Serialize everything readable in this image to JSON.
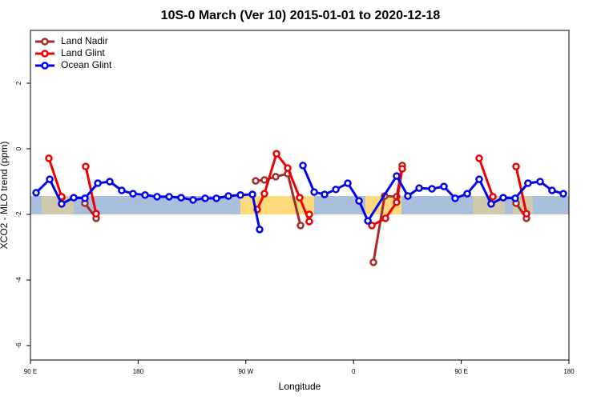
{
  "chart_data": {
    "type": "line",
    "title": "10S-0 March (Ver 10)   2015-01-01 to 2020-12-18",
    "xlabel": "Longitude",
    "ylabel": "XCO2 - MLO trend (ppm)",
    "xlim": [
      90,
      540
    ],
    "ylim": [
      -6.44,
      3.61
    ],
    "xticks": [
      {
        "value": 90,
        "label": "90 E"
      },
      180,
      {
        "value": 270,
        "label": "90 W"
      },
      {
        "value": 360,
        "label": "0"
      },
      {
        "value": 450,
        "label": "90 E"
      },
      {
        "value": 540,
        "label": "180"
      }
    ],
    "yticks": [
      -6,
      -4,
      -2,
      0,
      2
    ],
    "legend": "top-left",
    "series": [
      {
        "name": "Land Nadir",
        "color": "#a52a2a",
        "x": [
          116.1,
          null,
          135.5,
          144.9,
          null,
          278.2,
          285.5,
          294.9,
          305.0,
          315.7,
          null,
          376.6,
          386.0,
          396.0,
          400.7,
          null,
          495.8,
          504.5
        ],
        "values": [
          -1.49,
          null,
          -1.66,
          -2.12,
          null,
          -0.98,
          -0.95,
          -0.85,
          -0.76,
          -2.34,
          null,
          -3.46,
          -1.44,
          -1.46,
          -0.51,
          null,
          -1.66,
          -2.12
        ]
      },
      {
        "name": "Land Glint",
        "color": "#ee0000",
        "x": [
          105.4,
          116.1,
          null,
          136.2,
          144.9,
          null,
          279.5,
          285.5,
          295.6,
          305.0,
          315.0,
          323.0,
          323.0,
          null,
          375.3,
          386.7,
          396.0,
          400.7,
          null,
          465.0,
          476.4,
          null,
          495.8,
          504.5
        ],
        "values": [
          -0.29,
          -1.46,
          null,
          -0.54,
          -1.98,
          null,
          -1.85,
          -1.37,
          -0.15,
          -0.59,
          -1.49,
          -2.22,
          -2.0,
          null,
          -2.34,
          -2.12,
          -1.63,
          -0.61,
          null,
          -0.29,
          -1.46,
          null,
          -0.54,
          -1.98
        ]
      },
      {
        "name": "Ocean Glint",
        "color": "#0000ee",
        "x": [
          94.7,
          106.1,
          116.1,
          126.2,
          135.5,
          146.3,
          156.3,
          166.3,
          175.7,
          185.8,
          195.8,
          205.9,
          215.9,
          225.9,
          236.0,
          245.4,
          255.4,
          265.5,
          275.5,
          281.5,
          null,
          317.7,
          327.1,
          335.8,
          345.2,
          355.2,
          364.6,
          372.0,
          396.0,
          405.4,
          414.8,
          425.5,
          435.5,
          444.9,
          455.0,
          465.0,
          475.0,
          485.1,
          495.1,
          505.8,
          515.9,
          525.9,
          535.3
        ],
        "values": [
          -1.34,
          -0.93,
          -1.68,
          -1.49,
          -1.51,
          -1.05,
          -1.0,
          -1.27,
          -1.37,
          -1.41,
          -1.46,
          -1.46,
          -1.49,
          -1.56,
          -1.51,
          -1.51,
          -1.44,
          -1.41,
          -1.39,
          -2.46,
          null,
          -0.51,
          -1.32,
          -1.39,
          -1.24,
          -1.05,
          -1.59,
          -2.2,
          -0.83,
          -1.44,
          -1.2,
          -1.22,
          -1.15,
          -1.51,
          -1.37,
          -0.93,
          -1.68,
          -1.49,
          -1.51,
          -1.05,
          -1.0,
          -1.27,
          -1.37
        ]
      }
    ]
  }
}
